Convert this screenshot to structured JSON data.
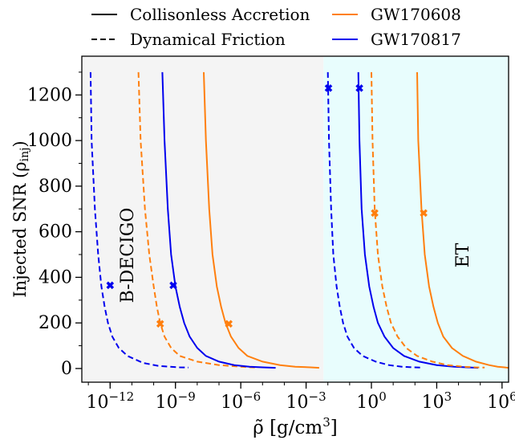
{
  "chart_data": {
    "type": "line",
    "title": "",
    "xlabel": "ρ̃ [g/cm³]",
    "ylabel": "Injected SNR (ρinj)",
    "xscale": "log",
    "xlim_log10": [
      -13.3,
      6.3
    ],
    "ylim": [
      -60,
      1370
    ],
    "x_tick_labels": [
      {
        "exp": -12,
        "base": "10",
        "sup": "−12"
      },
      {
        "exp": -9,
        "base": "10",
        "sup": "−9"
      },
      {
        "exp": -6,
        "base": "10",
        "sup": "−6"
      },
      {
        "exp": -3,
        "base": "10",
        "sup": "−3"
      },
      {
        "exp": 0,
        "base": "10",
        "sup": "0"
      },
      {
        "exp": 3,
        "base": "10",
        "sup": "3"
      },
      {
        "exp": 6,
        "base": "10",
        "sup": "6"
      }
    ],
    "y_ticks": [
      0,
      200,
      400,
      600,
      800,
      1000,
      1200
    ],
    "y_tick_labels": [
      "0",
      "200",
      "400",
      "600",
      "800",
      "1000",
      "1200"
    ],
    "regions": [
      {
        "label": "B-DECIGO",
        "from_log10": -13.3,
        "to_log10": -2.2,
        "color": "#f4f4f4"
      },
      {
        "label": "ET",
        "from_log10": -2.2,
        "to_log10": 6.3,
        "color": "#e8fdfd"
      }
    ],
    "legend": {
      "placement": "top, above plot",
      "styles": [
        {
          "name": "Collisonless Accretion",
          "dash": "solid"
        },
        {
          "name": "Dynamical Friction",
          "dash": "dashed"
        }
      ],
      "sources": [
        {
          "name": "GW170608",
          "color": "#ff7f0e"
        },
        {
          "name": "GW170817",
          "color": "#0000ee"
        }
      ]
    },
    "series": [
      {
        "source": "GW170817",
        "detector": "B-DECIGO",
        "style": "dashed",
        "color": "#0000ee",
        "x_log10": [
          -12.9,
          -12.85,
          -12.7,
          -12.55,
          -12.4,
          -12.25,
          -12.1,
          -11.9,
          -11.6,
          -11.2,
          -10.5,
          -9.8,
          -9.3,
          -8.8,
          -8.4
        ],
        "y": [
          1300,
          1000,
          700,
          500,
          360,
          270,
          200,
          140,
          90,
          55,
          25,
          12,
          8,
          5,
          4
        ],
        "marker": {
          "x_log10": -12.0,
          "y": 365
        }
      },
      {
        "source": "GW170608",
        "detector": "B-DECIGO",
        "style": "dashed",
        "color": "#ff7f0e",
        "x_log10": [
          -10.7,
          -10.6,
          -10.4,
          -10.2,
          -10.0,
          -9.85,
          -9.7,
          -9.5,
          -9.2,
          -8.8,
          -8.0,
          -7.0,
          -6.0,
          -5.5,
          -5.2
        ],
        "y": [
          1300,
          1000,
          700,
          500,
          360,
          270,
          200,
          140,
          90,
          55,
          30,
          15,
          8,
          5,
          4
        ],
        "marker": {
          "x_log10": -9.7,
          "y": 196
        }
      },
      {
        "source": "GW170817",
        "detector": "B-DECIGO",
        "style": "solid",
        "color": "#0000ee",
        "x_log10": [
          -9.6,
          -9.5,
          -9.35,
          -9.2,
          -9.0,
          -8.8,
          -8.6,
          -8.35,
          -8.0,
          -7.6,
          -7.0,
          -6.3,
          -5.6,
          -5.0,
          -4.4
        ],
        "y": [
          1300,
          1000,
          700,
          500,
          360,
          270,
          200,
          140,
          90,
          55,
          30,
          15,
          8,
          5,
          3
        ],
        "marker": {
          "x_log10": -9.1,
          "y": 365
        }
      },
      {
        "source": "GW170608",
        "detector": "B-DECIGO",
        "style": "solid",
        "color": "#ff7f0e",
        "x_log10": [
          -7.7,
          -7.6,
          -7.45,
          -7.3,
          -7.1,
          -6.9,
          -6.7,
          -6.45,
          -6.1,
          -5.7,
          -5.0,
          -4.2,
          -3.5,
          -2.8,
          -2.4
        ],
        "y": [
          1300,
          1000,
          700,
          500,
          360,
          270,
          200,
          140,
          90,
          55,
          30,
          15,
          8,
          5,
          3
        ],
        "marker": {
          "x_log10": -6.55,
          "y": 196
        }
      },
      {
        "source": "GW170817",
        "detector": "ET",
        "style": "dashed",
        "color": "#0000ee",
        "x_log10": [
          -2.0,
          -1.95,
          -1.85,
          -1.75,
          -1.6,
          -1.45,
          -1.3,
          -1.1,
          -0.8,
          -0.4,
          0.2,
          0.8,
          1.4,
          1.9,
          2.3
        ],
        "y": [
          1300,
          1000,
          700,
          500,
          360,
          270,
          200,
          140,
          90,
          55,
          30,
          15,
          8,
          5,
          4
        ],
        "marker": {
          "x_log10": -1.97,
          "y": 1230
        }
      },
      {
        "source": "GW170817",
        "detector": "ET",
        "style": "solid",
        "color": "#0000ee",
        "x_log10": [
          -0.6,
          -0.55,
          -0.45,
          -0.3,
          -0.1,
          0.1,
          0.3,
          0.6,
          1.0,
          1.5,
          2.2,
          3.0,
          3.8,
          4.4,
          4.9
        ],
        "y": [
          1300,
          1000,
          700,
          500,
          360,
          270,
          200,
          140,
          90,
          55,
          30,
          15,
          8,
          5,
          3
        ],
        "marker": {
          "x_log10": -0.55,
          "y": 1230
        }
      },
      {
        "source": "GW170608",
        "detector": "ET",
        "style": "dashed",
        "color": "#ff7f0e",
        "x_log10": [
          0.0,
          0.05,
          0.15,
          0.3,
          0.5,
          0.7,
          0.9,
          1.2,
          1.6,
          2.1,
          2.8,
          3.5,
          4.2,
          4.8,
          5.2
        ],
        "y": [
          1300,
          1000,
          700,
          500,
          360,
          270,
          200,
          140,
          90,
          55,
          30,
          15,
          8,
          5,
          4
        ],
        "marker": {
          "x_log10": 0.15,
          "y": 682
        }
      },
      {
        "source": "GW170608",
        "detector": "ET",
        "style": "solid",
        "color": "#ff7f0e",
        "x_log10": [
          2.1,
          2.15,
          2.3,
          2.45,
          2.65,
          2.85,
          3.05,
          3.3,
          3.7,
          4.2,
          4.8,
          5.4,
          5.8,
          6.1,
          6.3
        ],
        "y": [
          1300,
          1000,
          700,
          500,
          360,
          270,
          200,
          140,
          90,
          55,
          30,
          15,
          8,
          5,
          3
        ],
        "marker": {
          "x_log10": 2.4,
          "y": 682
        }
      }
    ]
  }
}
